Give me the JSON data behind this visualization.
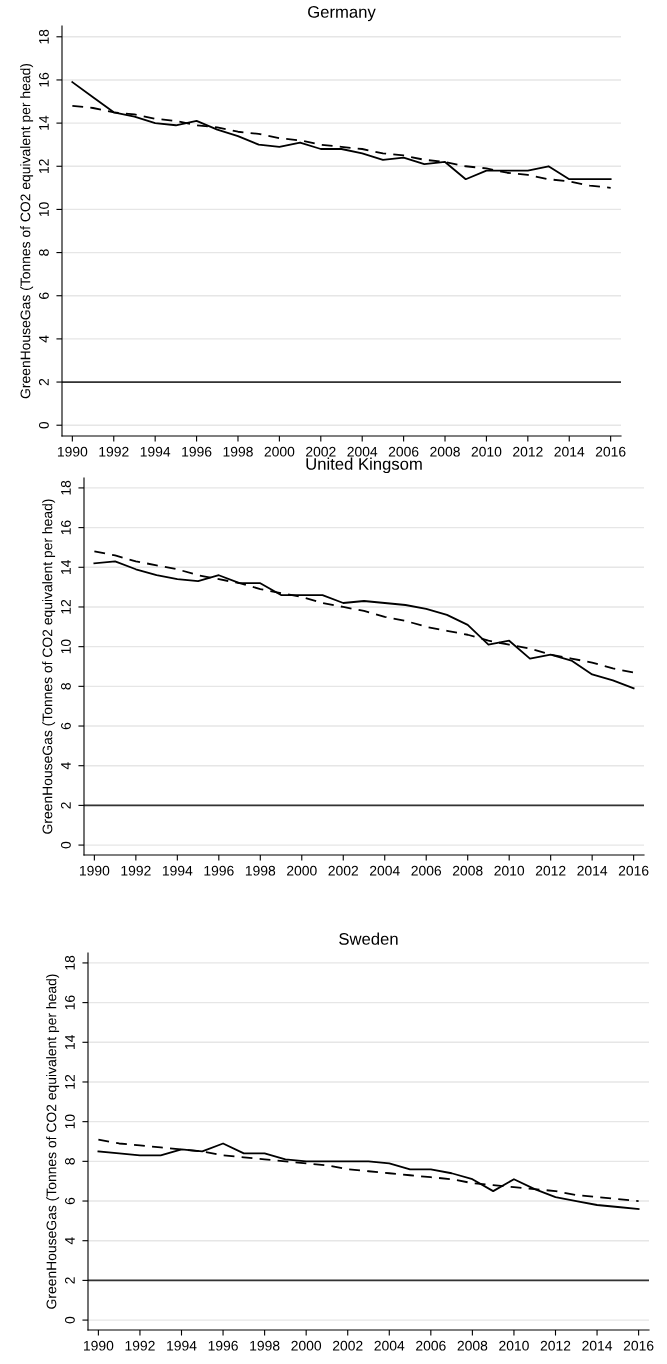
{
  "chart_data": [
    {
      "type": "line",
      "title": "Germany",
      "ylabel": "GreenHouseGas (Tonnes of CO2 equivalent per head)",
      "xlim": [
        1989.5,
        2016.5
      ],
      "ylim": [
        -0.5,
        18.5
      ],
      "xticks": [
        1990,
        1992,
        1994,
        1996,
        1998,
        2000,
        2002,
        2004,
        2006,
        2008,
        2010,
        2012,
        2014,
        2016
      ],
      "yticks": [
        0,
        2,
        4,
        6,
        8,
        10,
        12,
        14,
        16,
        18
      ],
      "grid": "y",
      "x": [
        1990,
        1991,
        1992,
        1993,
        1994,
        1995,
        1996,
        1997,
        1998,
        1999,
        2000,
        2001,
        2002,
        2003,
        2004,
        2005,
        2006,
        2007,
        2008,
        2009,
        2010,
        2011,
        2012,
        2013,
        2014,
        2015,
        2016
      ],
      "series": [
        {
          "color": "#000000",
          "line_style": "solid",
          "values": [
            15.9,
            15.2,
            14.5,
            14.3,
            14.0,
            13.9,
            14.1,
            13.7,
            13.4,
            13.0,
            12.9,
            13.1,
            12.8,
            12.8,
            12.6,
            12.3,
            12.4,
            12.1,
            12.2,
            11.4,
            11.8,
            11.8,
            11.8,
            12.0,
            11.4,
            11.4,
            11.4
          ]
        },
        {
          "color": "#000000",
          "line_style": "dashed",
          "values": [
            14.8,
            14.7,
            14.5,
            14.4,
            14.2,
            14.1,
            13.9,
            13.8,
            13.6,
            13.5,
            13.3,
            13.2,
            13.0,
            12.9,
            12.8,
            12.6,
            12.5,
            12.3,
            12.2,
            12.0,
            11.9,
            11.7,
            11.6,
            11.4,
            11.3,
            11.1,
            11.0
          ]
        }
      ],
      "ref_lines": [
        {
          "axis": "y",
          "value": 2,
          "color": "#333333"
        }
      ]
    },
    {
      "type": "line",
      "title": "United Kingsom",
      "ylabel": "GreenHouseGas (Tonnes of CO2 equivalent per head)",
      "xlim": [
        1989.5,
        2016.5
      ],
      "ylim": [
        -0.5,
        18.5
      ],
      "xticks": [
        1990,
        1992,
        1994,
        1996,
        1998,
        2000,
        2002,
        2004,
        2006,
        2008,
        2010,
        2012,
        2014,
        2016
      ],
      "yticks": [
        0,
        2,
        4,
        6,
        8,
        10,
        12,
        14,
        16,
        18
      ],
      "grid": "y",
      "x": [
        1990,
        1991,
        1992,
        1993,
        1994,
        1995,
        1996,
        1997,
        1998,
        1999,
        2000,
        2001,
        2002,
        2003,
        2004,
        2005,
        2006,
        2007,
        2008,
        2009,
        2010,
        2011,
        2012,
        2013,
        2014,
        2015,
        2016
      ],
      "series": [
        {
          "color": "#000000",
          "line_style": "solid",
          "values": [
            14.2,
            14.3,
            13.9,
            13.6,
            13.4,
            13.3,
            13.6,
            13.2,
            13.2,
            12.6,
            12.6,
            12.6,
            12.2,
            12.3,
            12.2,
            12.1,
            11.9,
            11.6,
            11.1,
            10.1,
            10.3,
            9.4,
            9.6,
            9.3,
            8.6,
            8.3,
            7.9
          ]
        },
        {
          "color": "#000000",
          "line_style": "dashed",
          "values": [
            14.8,
            14.6,
            14.3,
            14.1,
            13.9,
            13.6,
            13.4,
            13.2,
            12.9,
            12.7,
            12.5,
            12.2,
            12.0,
            11.8,
            11.5,
            11.3,
            11.0,
            10.8,
            10.6,
            10.3,
            10.1,
            9.9,
            9.6,
            9.4,
            9.2,
            8.9,
            8.7
          ]
        }
      ],
      "ref_lines": [
        {
          "axis": "y",
          "value": 2,
          "color": "#333333"
        }
      ]
    },
    {
      "type": "line",
      "title": "Sweden",
      "ylabel": "GreenHouseGas (Tonnes of CO2 equivalent per head)",
      "xlim": [
        1989.5,
        2016.5
      ],
      "ylim": [
        -0.5,
        18.5
      ],
      "xticks": [
        1990,
        1992,
        1994,
        1996,
        1998,
        2000,
        2002,
        2004,
        2006,
        2008,
        2010,
        2012,
        2014,
        2016
      ],
      "yticks": [
        0,
        2,
        4,
        6,
        8,
        10,
        12,
        14,
        16,
        18
      ],
      "grid": "y",
      "x": [
        1990,
        1991,
        1992,
        1993,
        1994,
        1995,
        1996,
        1997,
        1998,
        1999,
        2000,
        2001,
        2002,
        2003,
        2004,
        2005,
        2006,
        2007,
        2008,
        2009,
        2010,
        2011,
        2012,
        2013,
        2014,
        2015,
        2016
      ],
      "series": [
        {
          "color": "#000000",
          "line_style": "solid",
          "values": [
            8.5,
            8.4,
            8.3,
            8.3,
            8.6,
            8.5,
            8.9,
            8.4,
            8.4,
            8.1,
            8.0,
            8.0,
            8.0,
            8.0,
            7.9,
            7.6,
            7.6,
            7.4,
            7.1,
            6.5,
            7.1,
            6.6,
            6.2,
            6.0,
            5.8,
            5.7,
            5.6
          ]
        },
        {
          "color": "#000000",
          "line_style": "dashed",
          "values": [
            9.1,
            8.9,
            8.8,
            8.7,
            8.6,
            8.5,
            8.3,
            8.2,
            8.1,
            8.0,
            7.9,
            7.8,
            7.6,
            7.5,
            7.4,
            7.3,
            7.2,
            7.1,
            6.9,
            6.8,
            6.7,
            6.6,
            6.5,
            6.3,
            6.2,
            6.1,
            6.0
          ]
        }
      ],
      "ref_lines": [
        {
          "axis": "y",
          "value": 2,
          "color": "#333333"
        }
      ]
    }
  ]
}
